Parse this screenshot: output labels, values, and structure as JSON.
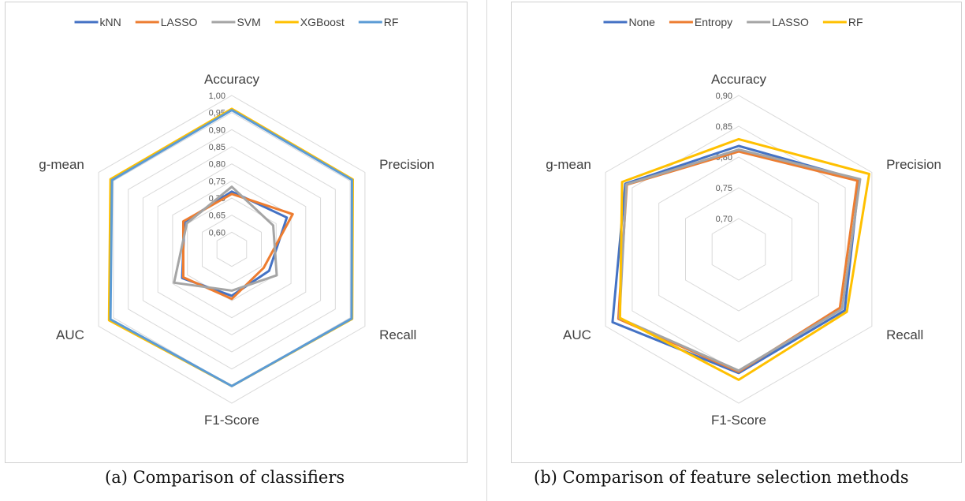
{
  "chart_data": [
    {
      "type": "radar",
      "axes": [
        "Accuracy",
        "Precision",
        "Recall",
        "F1-Score",
        "AUC",
        "g-mean"
      ],
      "range": [
        0.55,
        1.0
      ],
      "ticks": [
        "0,60",
        "0,65",
        "0,70",
        "0,75",
        "0,80",
        "0,85",
        "0,90",
        "0,95",
        "1,00"
      ],
      "tick_values": [
        0.6,
        0.65,
        0.7,
        0.75,
        0.8,
        0.85,
        0.9,
        0.95,
        1.0
      ],
      "grid": true,
      "legend_position": "top",
      "series": [
        {
          "name": "kNN",
          "color": "#4472C4",
          "values": [
            0.719,
            0.736,
            0.676,
            0.686,
            0.718,
            0.71
          ]
        },
        {
          "name": "LASSO",
          "color": "#ED7D31",
          "values": [
            0.712,
            0.756,
            0.658,
            0.695,
            0.714,
            0.714
          ]
        },
        {
          "name": "SVM",
          "color": "#A5A5A5",
          "values": [
            0.733,
            0.69,
            0.702,
            0.671,
            0.745,
            0.702
          ]
        },
        {
          "name": "XGBoost",
          "color": "#FFC000",
          "values": [
            0.961,
            0.959,
            0.957,
            0.95,
            0.965,
            0.96
          ]
        },
        {
          "name": "RF",
          "color": "#5B9BD5",
          "values": [
            0.957,
            0.956,
            0.955,
            0.95,
            0.96,
            0.955
          ]
        }
      ],
      "caption": "(a) Comparison of classifiers"
    },
    {
      "type": "radar",
      "axes": [
        "Accuracy",
        "Precision",
        "Recall",
        "F1-Score",
        "AUC",
        "g-mean"
      ],
      "range": [
        0.65,
        0.9
      ],
      "ticks": [
        "0,70",
        "0,75",
        "0,80",
        "0,85",
        "0,90"
      ],
      "tick_values": [
        0.7,
        0.75,
        0.8,
        0.85,
        0.9
      ],
      "grid": true,
      "legend_position": "top",
      "series": [
        {
          "name": "None",
          "color": "#4472C4",
          "values": [
            0.818,
            0.876,
            0.849,
            0.851,
            0.887,
            0.863
          ]
        },
        {
          "name": "Entropy",
          "color": "#ED7D31",
          "values": [
            0.809,
            0.873,
            0.84,
            0.849,
            0.876,
            0.86
          ]
        },
        {
          "name": "LASSO",
          "color": "#A5A5A5",
          "values": [
            0.812,
            0.878,
            0.844,
            0.847,
            0.874,
            0.861
          ]
        },
        {
          "name": "RF",
          "color": "#FFC000",
          "values": [
            0.829,
            0.895,
            0.853,
            0.862,
            0.873,
            0.869
          ]
        }
      ],
      "caption": "(b) Comparison of feature selection methods"
    }
  ]
}
